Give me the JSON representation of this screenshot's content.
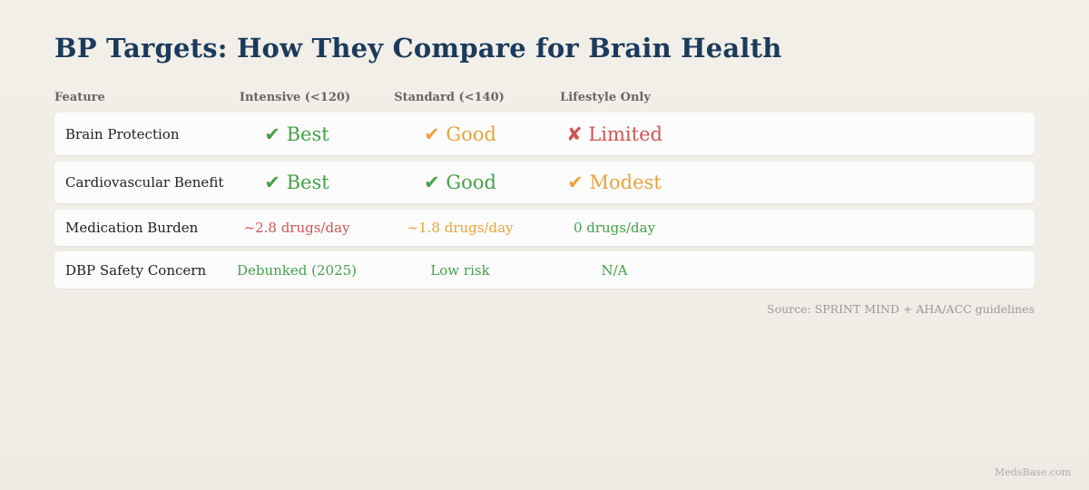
{
  "title": "BP Targets: How They Compare for Brain Health",
  "columns": [
    "Feature",
    "Intensive (<120)",
    "Standard (<140)",
    "Lifestyle Only"
  ],
  "rows": [
    {
      "feature": "Brain Protection",
      "cells": [
        {
          "text": "✔ Best",
          "status": "good"
        },
        {
          "text": "✔ Good",
          "status": "moderate"
        },
        {
          "text": "✘ Limited",
          "status": "bad"
        }
      ]
    },
    {
      "feature": "Cardiovascular Benefit",
      "cells": [
        {
          "text": "✔ Best",
          "status": "good"
        },
        {
          "text": "✔ Good",
          "status": "good"
        },
        {
          "text": "✔ Modest",
          "status": "moderate"
        }
      ]
    },
    {
      "feature": "Medication Burden",
      "cells": [
        {
          "text": "~2.8 drugs/day",
          "status": "bad"
        },
        {
          "text": "~1.8 drugs/day",
          "status": "moderate"
        },
        {
          "text": "0 drugs/day",
          "status": "good"
        }
      ]
    },
    {
      "feature": "DBP Safety Concern",
      "cells": [
        {
          "text": "Debunked (2025)",
          "status": "good"
        },
        {
          "text": "Low risk",
          "status": "good"
        },
        {
          "text": "N/A",
          "status": "good"
        }
      ]
    }
  ],
  "source": "Source: SPRINT MIND + AHA/ACC guidelines",
  "watermark": "MedsBase.com",
  "colors": {
    "title": "#1b3a5c",
    "good": "#45a04a",
    "moderate": "#e8a33a",
    "bad": "#d05454"
  }
}
